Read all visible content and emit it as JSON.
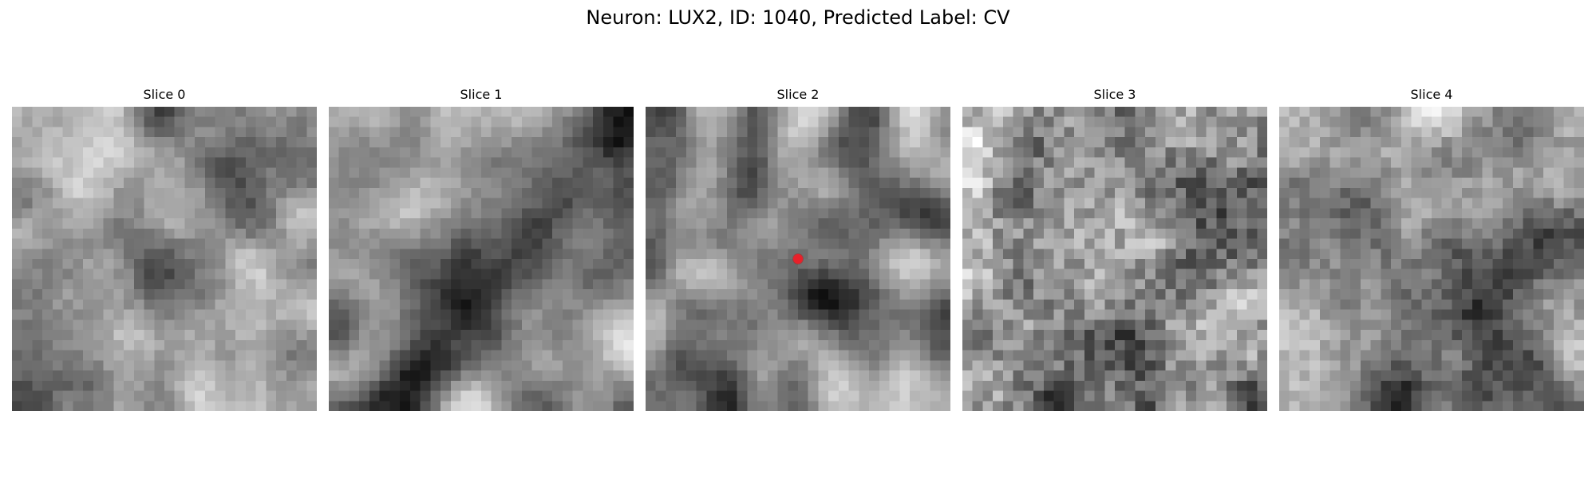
{
  "figure": {
    "title": "Neuron: LUX2, ID: 1040, Predicted Label: CV"
  },
  "panels": [
    {
      "title": "Slice 0",
      "seed": 101,
      "noise": 0.12,
      "smooth": 2,
      "marker": null
    },
    {
      "title": "Slice 1",
      "seed": 203,
      "noise": 0.1,
      "smooth": 2,
      "marker": null
    },
    {
      "title": "Slice 2",
      "seed": 307,
      "noise": 0.1,
      "smooth": 2,
      "marker": {
        "x_frac": 0.5,
        "y_frac": 0.5,
        "color": "#e8202a"
      }
    },
    {
      "title": "Slice 3",
      "seed": 409,
      "noise": 0.32,
      "smooth": 1,
      "marker": null
    },
    {
      "title": "Slice 4",
      "seed": 503,
      "noise": 0.18,
      "smooth": 2,
      "marker": null
    }
  ],
  "grid_size": 30,
  "colormap": "gray"
}
